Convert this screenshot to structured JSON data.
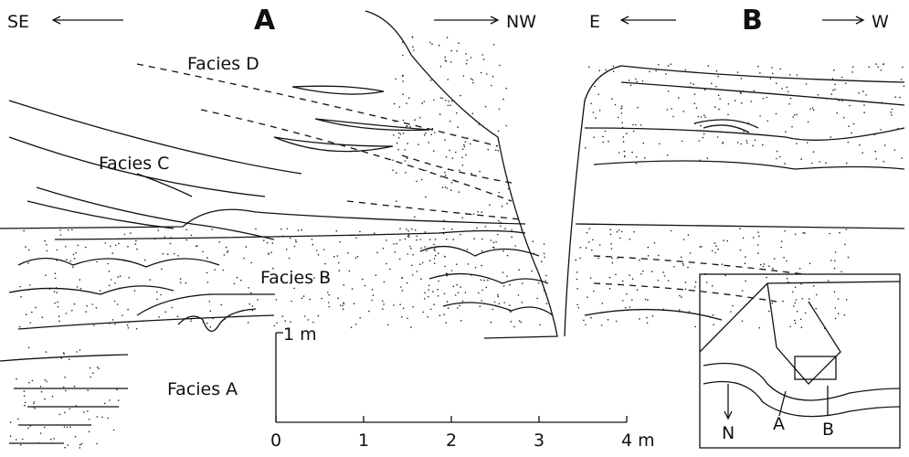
{
  "panel_a": {
    "label": "A",
    "left": "SE",
    "right": "NW"
  },
  "panel_b": {
    "label": "B",
    "left": "E",
    "right": "W"
  },
  "facies": {
    "d": "Facies D",
    "c": "Facies C",
    "b": "Facies B",
    "a": "Facies A"
  },
  "scale": {
    "vertical": "1 m",
    "horizontal": [
      "0",
      "1",
      "2",
      "3",
      "4 m"
    ]
  },
  "inset": {
    "north": "N",
    "markers": [
      "A",
      "B"
    ]
  }
}
